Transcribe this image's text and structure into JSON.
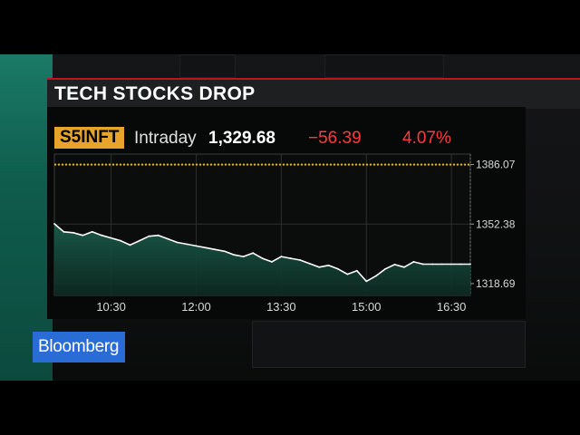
{
  "headline": "TECH STOCKS DROP",
  "ticker": {
    "symbol": "S5INFT",
    "period": "Intraday",
    "last": "1,329.68",
    "change": "−56.39",
    "change_pct": "4.07%",
    "colors": {
      "badge": "#e8a32a",
      "negative": "#ff3b3b",
      "line": "#ffffff",
      "fill": "#1a5c4a",
      "reference": "#e8b420"
    }
  },
  "brand": "Bloomberg",
  "chart_data": {
    "type": "area",
    "title": "",
    "xlabel": "",
    "ylabel": "",
    "x_ticks": [
      "10:30",
      "12:00",
      "13:30",
      "15:00",
      "16:30"
    ],
    "y_ticks": [
      "1386.07",
      "1352.38",
      "1318.69"
    ],
    "ylim": [
      1312,
      1392
    ],
    "xlim": [
      "09:30",
      "16:50"
    ],
    "reference_line": {
      "value": 1386.07,
      "style": "dotted"
    },
    "grid": true,
    "series": [
      {
        "x": [
          "09:30",
          "09:40",
          "09:50",
          "10:00",
          "10:10",
          "10:20",
          "10:30",
          "10:40",
          "10:50",
          "11:00",
          "11:10",
          "11:20",
          "11:30",
          "11:40",
          "11:50",
          "12:00",
          "12:10",
          "12:20",
          "12:30",
          "12:40",
          "12:50",
          "13:00",
          "13:10",
          "13:20",
          "13:30",
          "13:40",
          "13:50",
          "14:00",
          "14:10",
          "14:20",
          "14:30",
          "14:40",
          "14:50",
          "15:00",
          "15:10",
          "15:20",
          "15:30",
          "15:40",
          "15:50",
          "16:00",
          "16:10",
          "16:20",
          "16:30",
          "16:40",
          "16:50"
        ],
        "values": [
          1352.5,
          1348.0,
          1347.5,
          1346.0,
          1348.0,
          1346.0,
          1344.5,
          1343.0,
          1340.5,
          1343.0,
          1345.5,
          1346.0,
          1344.0,
          1342.0,
          1341.0,
          1340.0,
          1339.0,
          1338.0,
          1337.0,
          1335.0,
          1334.0,
          1336.0,
          1333.0,
          1331.0,
          1334.0,
          1333.0,
          1332.0,
          1330.0,
          1328.0,
          1329.0,
          1327.0,
          1324.0,
          1326.0,
          1320.0,
          1323.0,
          1327.0,
          1329.5,
          1328.0,
          1331.0,
          1329.68,
          1329.68,
          1329.68,
          1329.68,
          1329.68,
          1329.68
        ]
      }
    ]
  }
}
